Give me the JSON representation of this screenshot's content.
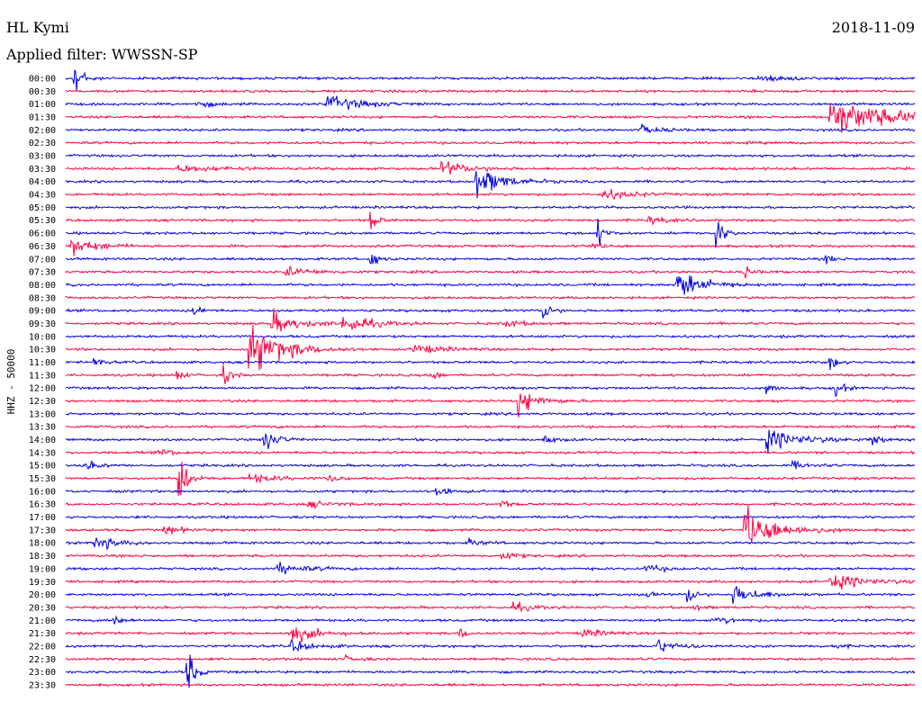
{
  "header": {
    "station": "HL Kymi",
    "date": "2018-11-09",
    "filter": "Applied filter: WWSSN-SP"
  },
  "chart_data": {
    "type": "line",
    "chart_kind": "helicorder",
    "ylabel": "HHZ - 50000",
    "colors": [
      "#0000e0",
      "#ff0040"
    ],
    "row_labels": [
      "00:00",
      "00:30",
      "01:00",
      "01:30",
      "02:00",
      "02:30",
      "03:00",
      "03:30",
      "04:00",
      "04:30",
      "05:00",
      "05:30",
      "06:00",
      "06:30",
      "07:00",
      "07:30",
      "08:00",
      "08:30",
      "09:00",
      "09:30",
      "10:00",
      "10:30",
      "11:00",
      "11:30",
      "12:00",
      "12:30",
      "13:00",
      "13:30",
      "14:00",
      "14:30",
      "15:00",
      "15:30",
      "16:00",
      "16:30",
      "17:00",
      "17:30",
      "18:00",
      "18:30",
      "19:00",
      "19:30",
      "20:00",
      "20:30",
      "21:00",
      "21:30",
      "22:00",
      "22:30",
      "23:00",
      "23:30"
    ],
    "grid": false,
    "legend": "none",
    "events": [
      {
        "row": 0,
        "minute": 0.3,
        "amplitude": 2.4,
        "duration": 2.5,
        "type": "local"
      },
      {
        "row": 0,
        "minute": 24.5,
        "amplitude": 0.35,
        "duration": 2,
        "type": "regional"
      },
      {
        "row": 2,
        "minute": 9.2,
        "amplitude": 0.8,
        "duration": 2.5,
        "type": "regional"
      },
      {
        "row": 2,
        "minute": 4.6,
        "amplitude": 0.25,
        "duration": 1.5,
        "type": "regional"
      },
      {
        "row": 3,
        "minute": 27.0,
        "amplitude": 1.7,
        "duration": 5,
        "type": "regional"
      },
      {
        "row": 4,
        "minute": 20.3,
        "amplitude": 0.4,
        "duration": 1.5,
        "type": "regional"
      },
      {
        "row": 7,
        "minute": 4.0,
        "amplitude": 0.3,
        "duration": 3,
        "type": "regional"
      },
      {
        "row": 7,
        "minute": 13.3,
        "amplitude": 0.7,
        "duration": 2,
        "type": "regional"
      },
      {
        "row": 8,
        "minute": 14.5,
        "amplitude": 1.5,
        "duration": 2,
        "type": "regional"
      },
      {
        "row": 9,
        "minute": 19.0,
        "amplitude": 0.5,
        "duration": 2,
        "type": "regional"
      },
      {
        "row": 11,
        "minute": 10.8,
        "amplitude": 0.9,
        "duration": 1,
        "type": "local"
      },
      {
        "row": 11,
        "minute": 20.6,
        "amplitude": 0.3,
        "duration": 1.5,
        "type": "regional"
      },
      {
        "row": 12,
        "minute": 18.8,
        "amplitude": 1.2,
        "duration": 1,
        "type": "local"
      },
      {
        "row": 12,
        "minute": 23.0,
        "amplitude": 1.6,
        "duration": 1,
        "type": "local"
      },
      {
        "row": 13,
        "minute": 0.2,
        "amplitude": 0.8,
        "duration": 2,
        "type": "regional"
      },
      {
        "row": 13,
        "minute": 18.5,
        "amplitude": 0.3,
        "duration": 1,
        "type": "regional"
      },
      {
        "row": 14,
        "minute": 10.8,
        "amplitude": 0.8,
        "duration": 1,
        "type": "local"
      },
      {
        "row": 14,
        "minute": 26.9,
        "amplitude": 0.5,
        "duration": 1,
        "type": "local"
      },
      {
        "row": 15,
        "minute": 7.8,
        "amplitude": 0.4,
        "duration": 2,
        "type": "regional"
      },
      {
        "row": 15,
        "minute": 24.0,
        "amplitude": 0.6,
        "duration": 0.5,
        "type": "local"
      },
      {
        "row": 16,
        "minute": 21.6,
        "amplitude": 1.4,
        "duration": 2,
        "type": "regional"
      },
      {
        "row": 18,
        "minute": 4.5,
        "amplitude": 0.7,
        "duration": 1,
        "type": "local"
      },
      {
        "row": 18,
        "minute": 16.9,
        "amplitude": 1.0,
        "duration": 1,
        "type": "local"
      },
      {
        "row": 19,
        "minute": 7.3,
        "amplitude": 1.0,
        "duration": 2,
        "type": "regional"
      },
      {
        "row": 19,
        "minute": 9.8,
        "amplitude": 0.9,
        "duration": 2,
        "type": "regional"
      },
      {
        "row": 19,
        "minute": 15.5,
        "amplitude": 0.3,
        "duration": 1.5,
        "type": "regional"
      },
      {
        "row": 21,
        "minute": 6.5,
        "amplitude": 2.4,
        "duration": 2.5,
        "type": "regional"
      },
      {
        "row": 21,
        "minute": 12.3,
        "amplitude": 0.5,
        "duration": 2,
        "type": "regional"
      },
      {
        "row": 22,
        "minute": 1.0,
        "amplitude": 0.5,
        "duration": 1,
        "type": "local"
      },
      {
        "row": 22,
        "minute": 27.0,
        "amplitude": 0.8,
        "duration": 1,
        "type": "local"
      },
      {
        "row": 23,
        "minute": 3.9,
        "amplitude": 0.6,
        "duration": 1,
        "type": "local"
      },
      {
        "row": 23,
        "minute": 5.6,
        "amplitude": 1.0,
        "duration": 0.5,
        "type": "local"
      },
      {
        "row": 23,
        "minute": 12.9,
        "amplitude": 0.6,
        "duration": 0.7,
        "type": "local"
      },
      {
        "row": 24,
        "minute": 24.8,
        "amplitude": 0.5,
        "duration": 1,
        "type": "local"
      },
      {
        "row": 24,
        "minute": 27.2,
        "amplitude": 1.0,
        "duration": 0.5,
        "type": "local"
      },
      {
        "row": 25,
        "minute": 16.0,
        "amplitude": 1.2,
        "duration": 1.5,
        "type": "regional"
      },
      {
        "row": 28,
        "minute": 7.0,
        "amplitude": 1.1,
        "duration": 1,
        "type": "regional"
      },
      {
        "row": 28,
        "minute": 24.8,
        "amplitude": 1.0,
        "duration": 2.5,
        "type": "regional"
      },
      {
        "row": 28,
        "minute": 28.4,
        "amplitude": 0.6,
        "duration": 1,
        "type": "regional"
      },
      {
        "row": 28,
        "minute": 16.9,
        "amplitude": 0.3,
        "duration": 1,
        "type": "regional"
      },
      {
        "row": 29,
        "minute": 3.3,
        "amplitude": 0.4,
        "duration": 1,
        "type": "regional"
      },
      {
        "row": 30,
        "minute": 0.7,
        "amplitude": 0.4,
        "duration": 1,
        "type": "regional"
      },
      {
        "row": 30,
        "minute": 25.7,
        "amplitude": 0.3,
        "duration": 1.5,
        "type": "regional"
      },
      {
        "row": 31,
        "minute": 4.0,
        "amplitude": 3.2,
        "duration": 1.5,
        "type": "local"
      },
      {
        "row": 31,
        "minute": 6.5,
        "amplitude": 0.4,
        "duration": 2,
        "type": "regional"
      },
      {
        "row": 31,
        "minute": 9.3,
        "amplitude": 0.6,
        "duration": 0.5,
        "type": "local"
      },
      {
        "row": 32,
        "minute": 13.1,
        "amplitude": 0.4,
        "duration": 1,
        "type": "regional"
      },
      {
        "row": 33,
        "minute": 8.6,
        "amplitude": 0.3,
        "duration": 1.5,
        "type": "regional"
      },
      {
        "row": 33,
        "minute": 15.4,
        "amplitude": 0.4,
        "duration": 0.5,
        "type": "local"
      },
      {
        "row": 35,
        "minute": 24.0,
        "amplitude": 2.0,
        "duration": 2.5,
        "type": "regional"
      },
      {
        "row": 35,
        "minute": 3.5,
        "amplitude": 0.4,
        "duration": 1.5,
        "type": "regional"
      },
      {
        "row": 36,
        "minute": 1.0,
        "amplitude": 0.8,
        "duration": 1.5,
        "type": "regional"
      },
      {
        "row": 36,
        "minute": 14.3,
        "amplitude": 0.3,
        "duration": 1,
        "type": "regional"
      },
      {
        "row": 37,
        "minute": 15.4,
        "amplitude": 0.4,
        "duration": 1,
        "type": "regional"
      },
      {
        "row": 38,
        "minute": 7.5,
        "amplitude": 0.5,
        "duration": 2,
        "type": "regional"
      },
      {
        "row": 38,
        "minute": 20.5,
        "amplitude": 0.3,
        "duration": 1.5,
        "type": "regional"
      },
      {
        "row": 39,
        "minute": 27.0,
        "amplitude": 0.8,
        "duration": 2.5,
        "type": "regional"
      },
      {
        "row": 40,
        "minute": 22.0,
        "amplitude": 1.0,
        "duration": 0.5,
        "type": "local"
      },
      {
        "row": 40,
        "minute": 23.6,
        "amplitude": 0.8,
        "duration": 2,
        "type": "regional"
      },
      {
        "row": 40,
        "minute": 20.5,
        "amplitude": 0.3,
        "duration": 0.5,
        "type": "local"
      },
      {
        "row": 41,
        "minute": 15.8,
        "amplitude": 0.4,
        "duration": 1.5,
        "type": "regional"
      },
      {
        "row": 41,
        "minute": 22.2,
        "amplitude": 0.4,
        "duration": 0.5,
        "type": "local"
      },
      {
        "row": 42,
        "minute": 1.7,
        "amplitude": 0.6,
        "duration": 0.5,
        "type": "local"
      },
      {
        "row": 42,
        "minute": 23.0,
        "amplitude": 0.3,
        "duration": 1.5,
        "type": "regional"
      },
      {
        "row": 43,
        "minute": 7.9,
        "amplitude": 0.9,
        "duration": 2,
        "type": "regional"
      },
      {
        "row": 43,
        "minute": 13.9,
        "amplitude": 0.6,
        "duration": 0.5,
        "type": "local"
      },
      {
        "row": 43,
        "minute": 18.3,
        "amplitude": 0.4,
        "duration": 1.5,
        "type": "regional"
      },
      {
        "row": 44,
        "minute": 8.0,
        "amplitude": 0.5,
        "duration": 1.5,
        "type": "regional"
      },
      {
        "row": 44,
        "minute": 20.8,
        "amplitude": 0.7,
        "duration": 1.5,
        "type": "regional"
      },
      {
        "row": 44,
        "minute": 27.0,
        "amplitude": 0.5,
        "duration": 0.5,
        "type": "local"
      },
      {
        "row": 45,
        "minute": 9.8,
        "amplitude": 0.3,
        "duration": 1,
        "type": "regional"
      },
      {
        "row": 46,
        "minute": 4.3,
        "amplitude": 2.2,
        "duration": 0.8,
        "type": "local"
      }
    ]
  }
}
